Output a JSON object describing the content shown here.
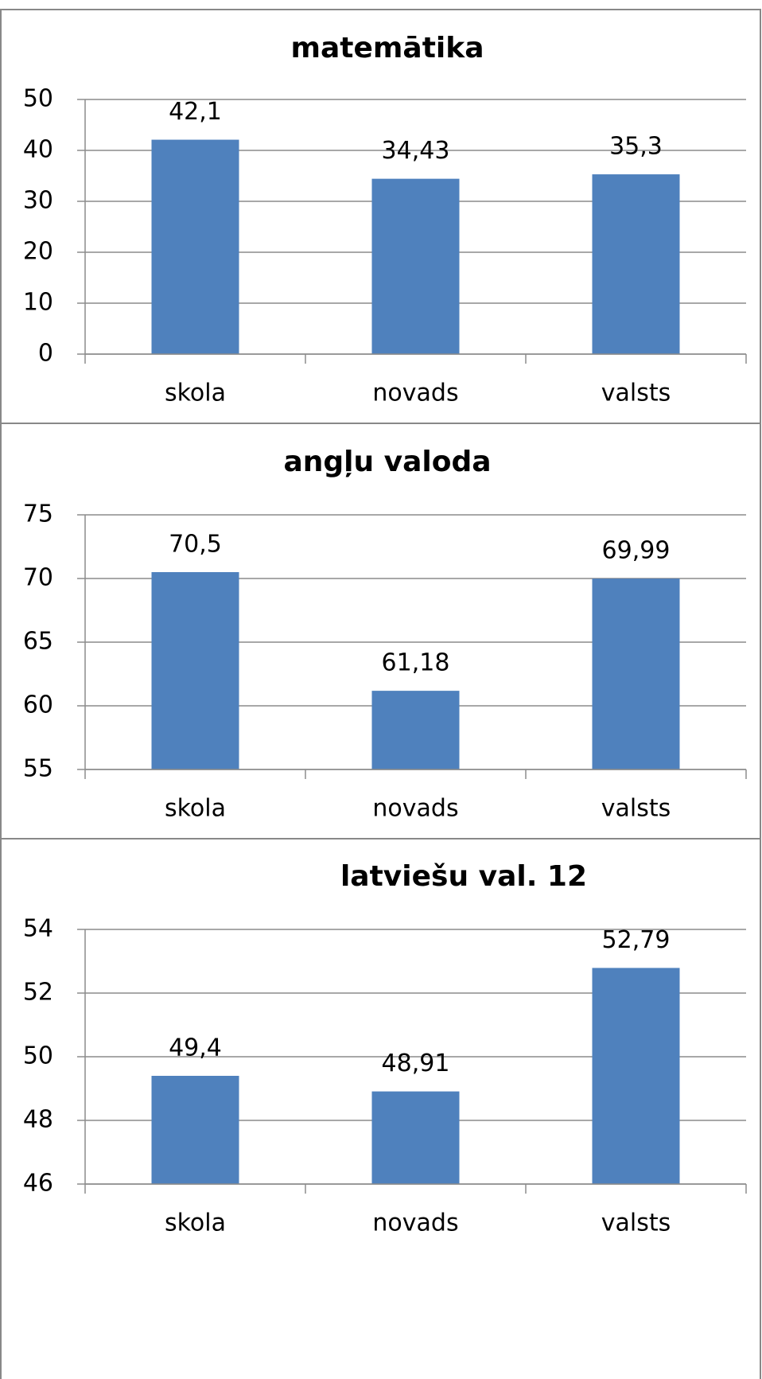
{
  "chart_data": [
    {
      "type": "bar",
      "title": "matemātika",
      "categories": [
        "skola",
        "novads",
        "valsts"
      ],
      "values": [
        42.1,
        34.43,
        35.3
      ],
      "value_labels": [
        "42,1",
        "34,43",
        "35,3"
      ],
      "color": "#4f81bd",
      "ylim": [
        0,
        50
      ],
      "yticks": [
        0,
        10,
        20,
        30,
        40,
        50
      ],
      "grid": true
    },
    {
      "type": "bar",
      "title": "angļu valoda",
      "categories": [
        "skola",
        "novads",
        "valsts"
      ],
      "values": [
        70.5,
        61.18,
        69.99
      ],
      "value_labels": [
        "70,5",
        "61,18",
        "69,99"
      ],
      "color": "#4f81bd",
      "ylim": [
        55,
        75
      ],
      "yticks": [
        55,
        60,
        65,
        70,
        75
      ],
      "grid": true
    },
    {
      "type": "bar",
      "title": "latviešu val. 12",
      "categories": [
        "skola",
        "novads",
        "valsts"
      ],
      "values": [
        49.4,
        48.91,
        52.79
      ],
      "value_labels": [
        "49,4",
        "48,91",
        "52,79"
      ],
      "color": "#4f81bd",
      "ylim": [
        46,
        54
      ],
      "yticks": [
        46,
        48,
        50,
        52,
        54
      ],
      "grid": true
    }
  ]
}
